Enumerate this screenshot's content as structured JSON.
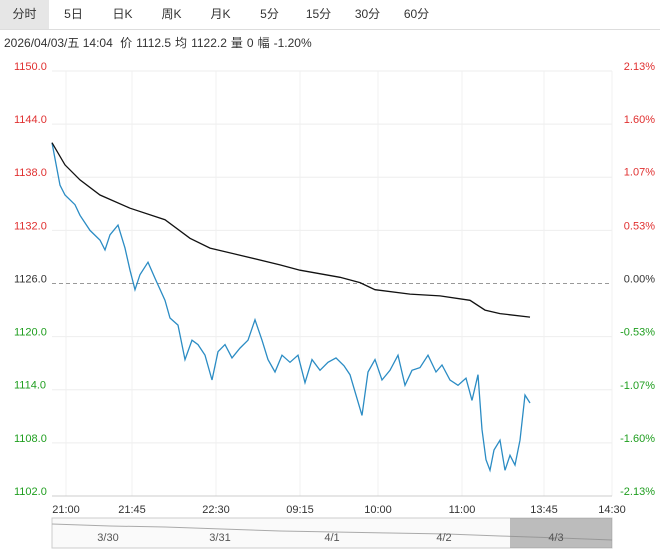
{
  "header": {
    "tabs": [
      "分时",
      "5日",
      "日K",
      "周K",
      "月K",
      "5分",
      "15分",
      "30分",
      "60分"
    ],
    "selected": 0,
    "info": {
      "datetime": "2026/04/03/五 14:04",
      "items": [
        {
          "label": "价",
          "value": "1112.5"
        },
        {
          "label": "均",
          "value": "1122.2"
        },
        {
          "label": "量",
          "value": "0"
        },
        {
          "label": "幅",
          "value": "-1.20%"
        }
      ]
    }
  },
  "chart_data": {
    "type": "line",
    "xlim": [
      0,
      140
    ],
    "xticks": [
      {
        "value": 3.5,
        "label": "21:00"
      },
      {
        "value": 20,
        "label": "21:45"
      },
      {
        "value": 41,
        "label": "22:30"
      },
      {
        "value": 62,
        "label": "09:15"
      },
      {
        "value": 81.5,
        "label": "10:00"
      },
      {
        "value": 102.5,
        "label": "11:00"
      },
      {
        "value": 123,
        "label": "13:45"
      },
      {
        "value": 140,
        "label": "14:30"
      }
    ],
    "ylim": [
      1102,
      1150
    ],
    "yticks": [
      {
        "value": 1150,
        "label": "1150.0"
      },
      {
        "value": 1144,
        "label": "1144.0"
      },
      {
        "value": 1138,
        "label": "1138.0"
      },
      {
        "value": 1132,
        "label": "1132.0"
      },
      {
        "value": 1126,
        "label": "1126.0"
      },
      {
        "value": 1120,
        "label": "1120.0"
      },
      {
        "value": 1114,
        "label": "1114.0"
      },
      {
        "value": 1108,
        "label": "1108.0"
      },
      {
        "value": 1102,
        "label": "1102.0"
      }
    ],
    "y2lim": [
      -2.13,
      2.13
    ],
    "y2ticks": [
      {
        "value": 2.13,
        "label": "2.13%"
      },
      {
        "value": 1.6,
        "label": "1.60%"
      },
      {
        "value": 1.07,
        "label": "1.07%"
      },
      {
        "value": 0.53,
        "label": "0.53%"
      },
      {
        "value": 0,
        "label": "0.00%"
      },
      {
        "value": -0.53,
        "label": "-0.53%"
      },
      {
        "value": -1.07,
        "label": "-1.07%"
      },
      {
        "value": -1.6,
        "label": "-1.60%"
      },
      {
        "value": -2.13,
        "label": "-2.13%"
      }
    ],
    "reference": 1126,
    "grid": true,
    "up_color": "#e03030",
    "down_color": "#1f9e1f",
    "series": [
      {
        "color": "#2b8cc4",
        "x": [
          0,
          2,
          3.25,
          5.75,
          7,
          9.5,
          12,
          13.25,
          14.5,
          16.5,
          18.25,
          19.5,
          20.75,
          22,
          24,
          25.75,
          28.25,
          29.5,
          31.5,
          33.25,
          35,
          36.5,
          38.25,
          40,
          41.5,
          43.25,
          45,
          47,
          49,
          50.75,
          52.5,
          54,
          55.75,
          57.5,
          59.5,
          61.5,
          63.25,
          65,
          67,
          69,
          71,
          73,
          74.5,
          76,
          77.5,
          79,
          80.75,
          82.5,
          84.5,
          86.5,
          88.25,
          90,
          92,
          94,
          96,
          97.5,
          99.5,
          101.5,
          103.5,
          105,
          106.5,
          107.5,
          108.5,
          109.5,
          110.5,
          112,
          113.25,
          114.5,
          115.75,
          117,
          118.25,
          119.5
        ],
        "values": [
          1141.9,
          1137.1,
          1136.0,
          1134.9,
          1133.7,
          1132.0,
          1130.9,
          1129.8,
          1131.5,
          1132.6,
          1130.0,
          1127.5,
          1125.3,
          1127.0,
          1128.4,
          1126.6,
          1124.1,
          1122.1,
          1121.3,
          1117.4,
          1119.6,
          1119.1,
          1117.9,
          1115.1,
          1118.3,
          1119.1,
          1117.6,
          1118.7,
          1119.6,
          1121.9,
          1119.6,
          1117.4,
          1116.0,
          1117.9,
          1117.1,
          1117.9,
          1114.8,
          1117.4,
          1116.2,
          1117.1,
          1117.6,
          1116.7,
          1115.7,
          1113.4,
          1111.1,
          1116.0,
          1117.4,
          1115.1,
          1116.2,
          1117.9,
          1114.5,
          1116.2,
          1116.5,
          1117.9,
          1116.0,
          1116.8,
          1115.1,
          1114.5,
          1115.3,
          1112.8,
          1115.7,
          1109.5,
          1106.1,
          1104.9,
          1107.2,
          1108.3,
          1104.9,
          1106.6,
          1105.5,
          1108.3,
          1113.4,
          1112.5
        ]
      },
      {
        "color": "#111111",
        "x": [
          0,
          3.25,
          7,
          12,
          19.5,
          28.25,
          34.5,
          39.5,
          47,
          57,
          62,
          72,
          77,
          80.75,
          89.5,
          97,
          104.5,
          108.25,
          112,
          119.5
        ],
        "values": [
          1141.9,
          1139.4,
          1137.7,
          1136.0,
          1134.5,
          1133.2,
          1131.1,
          1130.0,
          1129.2,
          1128.1,
          1127.5,
          1126.7,
          1126.1,
          1125.3,
          1124.8,
          1124.6,
          1124.1,
          1123.0,
          1122.6,
          1122.2
        ]
      }
    ]
  },
  "navigator": {
    "labels": [
      "3/30",
      "3/31",
      "4/1",
      "4/2",
      "4/3"
    ]
  }
}
